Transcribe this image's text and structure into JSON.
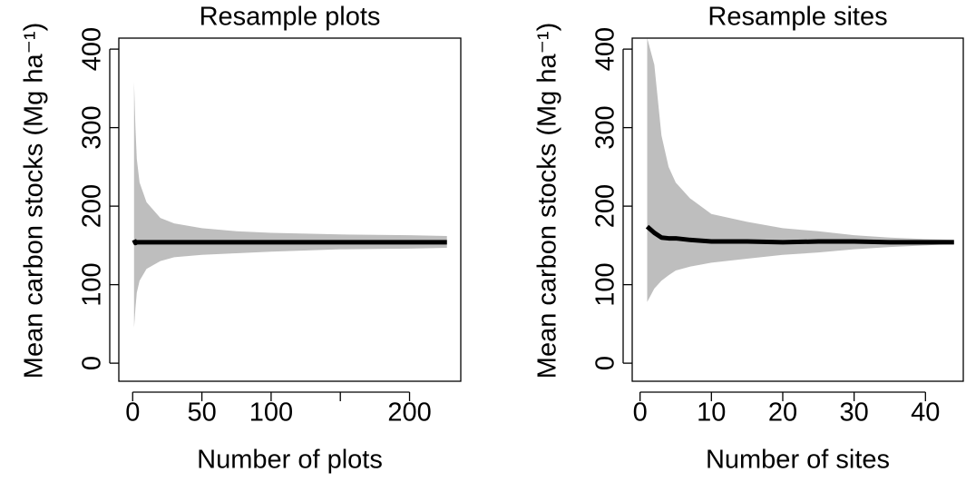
{
  "chart_data": [
    {
      "type": "line",
      "title": "Resample plots",
      "xlabel": "Number of plots",
      "ylabel": "Mean carbon stocks (Mg ha⁻¹)",
      "x": [
        1,
        2,
        3,
        5,
        10,
        20,
        30,
        50,
        75,
        100,
        150,
        200,
        227
      ],
      "line": {
        "color": "#000000",
        "values": [
          157,
          153,
          154,
          154,
          154,
          154,
          154,
          154,
          154,
          154,
          154,
          154,
          154
        ]
      },
      "band": {
        "color": "#bebebe",
        "upper": [
          358,
          300,
          260,
          230,
          205,
          185,
          178,
          172,
          168,
          166,
          164,
          163,
          162
        ],
        "lower": [
          45,
          70,
          90,
          105,
          120,
          130,
          135,
          138,
          140,
          142,
          145,
          146,
          147
        ]
      },
      "xlim": [
        -10,
        237
      ],
      "xticks": [
        0,
        50,
        100,
        {
          "value": 150,
          "label": null
        },
        200
      ],
      "ylim": [
        -23,
        414
      ],
      "yticks": [
        0,
        100,
        200,
        300,
        400
      ]
    },
    {
      "type": "line",
      "title": "Resample sites",
      "xlabel": "Number of sites",
      "ylabel": "Mean carbon stocks (Mg ha⁻¹)",
      "x": [
        1,
        2,
        3,
        4,
        5,
        7,
        10,
        15,
        20,
        25,
        30,
        35,
        40,
        44
      ],
      "line": {
        "color": "#000000",
        "values": [
          174,
          166,
          160,
          159,
          159,
          157,
          155,
          155,
          154,
          155,
          155,
          154,
          154,
          154
        ]
      },
      "band": {
        "color": "#bebebe",
        "upper": [
          414,
          380,
          290,
          250,
          230,
          210,
          190,
          180,
          172,
          168,
          163,
          160,
          158,
          157
        ],
        "lower": [
          78,
          95,
          105,
          112,
          118,
          123,
          128,
          133,
          138,
          141,
          145,
          148,
          150,
          152
        ]
      },
      "xlim": [
        -1.1,
        45.3
      ],
      "xticks": [
        0,
        10,
        20,
        30,
        40
      ],
      "ylim": [
        -23,
        414
      ],
      "yticks": [
        0,
        100,
        200,
        300,
        400
      ]
    }
  ]
}
